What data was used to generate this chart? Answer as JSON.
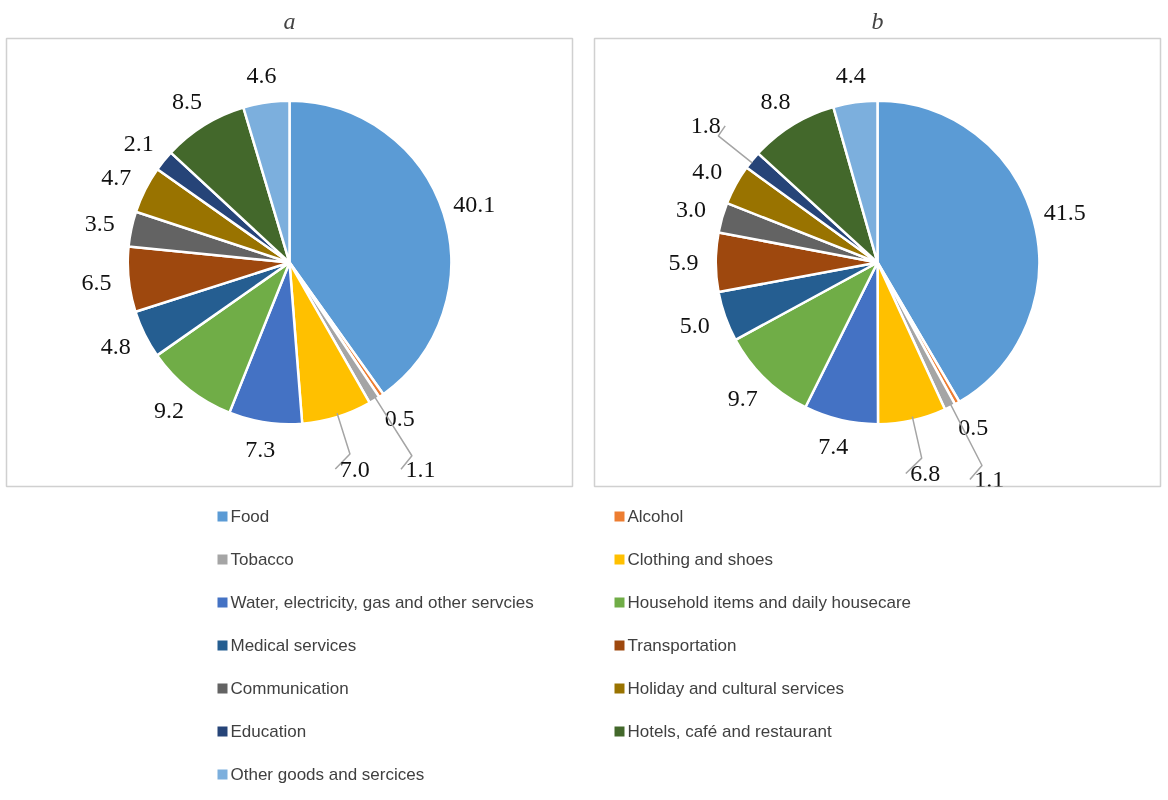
{
  "chart_data": [
    {
      "type": "pie",
      "title": "a",
      "legend": "bottom",
      "categories": [
        "Food",
        "Alcohol",
        "Tobacco",
        "Clothing and shoes",
        "Water, electricity, gas and other servcies",
        "Household items and daily housecare",
        "Medical services",
        "Transportation",
        "Communication",
        "Holiday and cultural services",
        "Education",
        "Hotels, café and restaurant",
        "Other goods and sercices"
      ],
      "values": [
        40.1,
        0.5,
        1.1,
        7.0,
        7.3,
        9.2,
        4.8,
        6.5,
        3.5,
        4.7,
        2.1,
        8.5,
        4.6
      ],
      "value_labels": [
        "40.1",
        "0.5",
        "1.1",
        "7.0",
        "7.3",
        "9.2",
        "4.8",
        "6.5",
        "3.5",
        "4.7",
        "2.1",
        "8.5",
        "4.6"
      ],
      "colors": [
        "#5b9bd5",
        "#ed7d31",
        "#a5a5a5",
        "#ffc000",
        "#4472c4",
        "#70ad47",
        "#255e91",
        "#9e480e",
        "#636363",
        "#997300",
        "#264478",
        "#43682b",
        "#7cafdd"
      ]
    },
    {
      "type": "pie",
      "title": "b",
      "values": [
        41.5,
        0.5,
        1.1,
        6.8,
        7.4,
        9.7,
        5.0,
        5.9,
        3.0,
        4.0,
        1.8,
        8.8,
        4.4
      ],
      "value_labels": [
        "41.5",
        "0.5",
        "1.1",
        "6.8",
        "7.4",
        "9.7",
        "5.0",
        "5.9",
        "3.0",
        "4.0",
        "1.8",
        "8.8",
        "4.4"
      ],
      "colors": [
        "#5b9bd5",
        "#ed7d31",
        "#a5a5a5",
        "#ffc000",
        "#4472c4",
        "#70ad47",
        "#255e91",
        "#9e480e",
        "#636363",
        "#997300",
        "#264478",
        "#43682b",
        "#7cafdd"
      ]
    }
  ]
}
